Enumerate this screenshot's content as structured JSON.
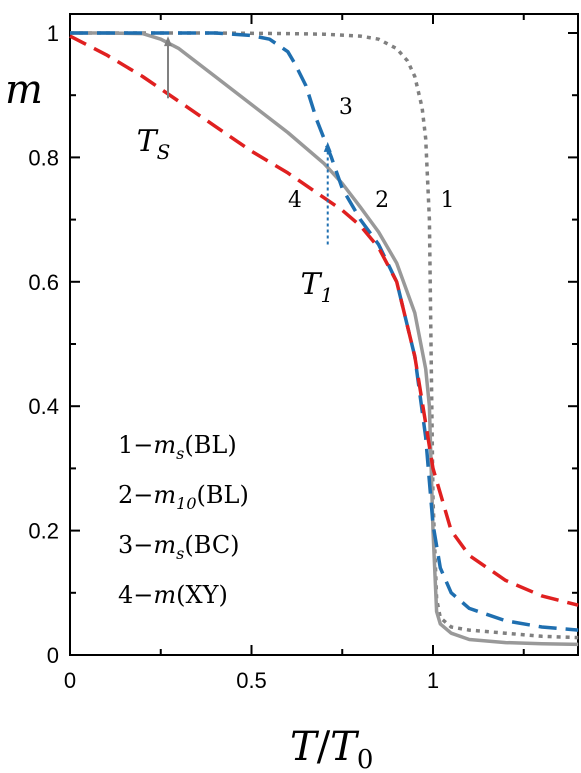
{
  "chart_data": {
    "type": "line",
    "xlabel": {
      "main": "T",
      "slash": "/",
      "sub_main": "T",
      "sub": "0"
    },
    "ylabel": "m",
    "xlim": [
      0,
      1.4
    ],
    "ylim": [
      0,
      1.0
    ],
    "xticks": [
      {
        "value": 0,
        "label": "0"
      },
      {
        "value": 0.5,
        "label": "0.5"
      },
      {
        "value": 1,
        "label": "1"
      }
    ],
    "yticks": [
      {
        "value": 0,
        "label": "0"
      },
      {
        "value": 0.2,
        "label": "0.2"
      },
      {
        "value": 0.4,
        "label": "0.4"
      },
      {
        "value": 0.6,
        "label": "0.6"
      },
      {
        "value": 0.8,
        "label": "0.8"
      },
      {
        "value": 1.0,
        "label": "1"
      }
    ],
    "series": [
      {
        "id": "1",
        "color": "#808080",
        "style": "dotted",
        "x": [
          0,
          0.2,
          0.4,
          0.6,
          0.7,
          0.8,
          0.85,
          0.9,
          0.93,
          0.95,
          0.97,
          0.98,
          0.99,
          1.0,
          1.01,
          1.02,
          1.05,
          1.1,
          1.2,
          1.3,
          1.4
        ],
        "y": [
          1.0,
          1.0,
          1.0,
          0.999,
          0.998,
          0.995,
          0.99,
          0.975,
          0.955,
          0.93,
          0.88,
          0.83,
          0.7,
          0.25,
          0.09,
          0.06,
          0.045,
          0.04,
          0.035,
          0.03,
          0.028
        ]
      },
      {
        "id": "2",
        "color": "#999999",
        "style": "solid",
        "x": [
          0,
          0.1,
          0.2,
          0.25,
          0.3,
          0.4,
          0.5,
          0.6,
          0.7,
          0.75,
          0.8,
          0.85,
          0.9,
          0.95,
          0.98,
          0.99,
          1.0,
          1.01,
          1.02,
          1.05,
          1.1,
          1.2,
          1.3,
          1.4
        ],
        "y": [
          1.0,
          1.0,
          0.999,
          0.99,
          0.975,
          0.93,
          0.885,
          0.84,
          0.79,
          0.758,
          0.72,
          0.68,
          0.63,
          0.55,
          0.46,
          0.4,
          0.2,
          0.07,
          0.05,
          0.035,
          0.025,
          0.02,
          0.018,
          0.017
        ]
      },
      {
        "id": "3",
        "color": "#1f6fb0",
        "style": "dashed",
        "x": [
          0,
          0.2,
          0.4,
          0.5,
          0.55,
          0.6,
          0.62,
          0.65,
          0.68,
          0.7,
          0.72,
          0.75,
          0.8,
          0.85,
          0.9,
          0.95,
          0.98,
          1.0,
          1.02,
          1.05,
          1.1,
          1.2,
          1.3,
          1.4
        ],
        "y": [
          1.0,
          1.0,
          1.0,
          0.996,
          0.99,
          0.97,
          0.95,
          0.915,
          0.86,
          0.83,
          0.8,
          0.75,
          0.7,
          0.66,
          0.6,
          0.48,
          0.35,
          0.21,
          0.14,
          0.1,
          0.075,
          0.055,
          0.045,
          0.04
        ]
      },
      {
        "id": "4",
        "color": "#e02020",
        "style": "dashed",
        "x": [
          0,
          0.1,
          0.2,
          0.3,
          0.4,
          0.5,
          0.6,
          0.7,
          0.75,
          0.8,
          0.85,
          0.9,
          0.95,
          1.0,
          1.05,
          1.1,
          1.2,
          1.3,
          1.4
        ],
        "y": [
          0.995,
          0.965,
          0.93,
          0.89,
          0.85,
          0.81,
          0.775,
          0.735,
          0.715,
          0.69,
          0.655,
          0.6,
          0.48,
          0.3,
          0.2,
          0.16,
          0.12,
          0.095,
          0.08
        ]
      }
    ],
    "curve_labels": [
      {
        "text": "1",
        "x": 1.04,
        "y": 0.72
      },
      {
        "text": "2",
        "x": 0.86,
        "y": 0.72
      },
      {
        "text": "3",
        "x": 0.76,
        "y": 0.87
      },
      {
        "text": "4",
        "x": 0.62,
        "y": 0.72
      }
    ],
    "annotations": [
      {
        "main": "T",
        "sub": "S",
        "color": "#808080",
        "style": "solid",
        "tip": [
          0.27,
          0.995
        ],
        "tail": [
          0.27,
          0.895
        ],
        "label_at": [
          0.23,
          0.81
        ]
      },
      {
        "main": "T",
        "sub": "1",
        "color": "#1f6fb0",
        "style": "dotted",
        "tip": [
          0.71,
          0.825
        ],
        "tail": [
          0.71,
          0.66
        ],
        "label_at": [
          0.68,
          0.58
        ]
      }
    ],
    "legend": [
      {
        "num": "1",
        "dash": "−",
        "sym": "m",
        "sub": "s",
        "paren": "(BL)"
      },
      {
        "num": "2",
        "dash": "−",
        "sym": "m",
        "sub": "10",
        "paren": "(BL)"
      },
      {
        "num": "3",
        "dash": "−",
        "sym": "m",
        "sub": "s",
        "paren": "(BC)"
      },
      {
        "num": "4",
        "dash": "−",
        "sym": "m",
        "sub": "",
        "paren": "(XY)"
      }
    ]
  }
}
